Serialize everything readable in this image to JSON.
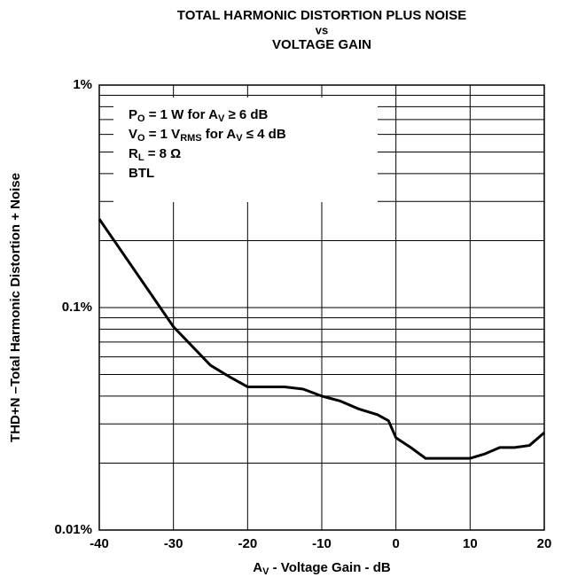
{
  "chart_data": {
    "type": "line",
    "title": [
      "TOTAL HARMONIC DISTORTION PLUS NOISE",
      "vs",
      "VOLTAGE GAIN"
    ],
    "xlabel": [
      "A",
      "V",
      " - Voltage Gain - dB"
    ],
    "ylabel": "THD+N –Total Harmonic Distortion + Noise",
    "annotation": [
      [
        "P",
        "O",
        " = 1 W for A",
        "V",
        " ≥ 6 dB"
      ],
      [
        "V",
        "O",
        " = 1 V",
        "RMS",
        " for A",
        "V",
        " ≤ 4 dB"
      ],
      [
        "R",
        "L",
        " = 8 Ω"
      ],
      [
        "BTL"
      ]
    ],
    "x": [
      -40,
      -30,
      -25,
      -22.5,
      -20,
      -15,
      -12.5,
      -10,
      -7.5,
      -5,
      -2.5,
      -1,
      0,
      2,
      4,
      10,
      12,
      14,
      16,
      18,
      20
    ],
    "series": [
      {
        "color": "#000000",
        "values": [
          0.25,
          0.082,
          0.055,
          0.049,
          0.044,
          0.044,
          0.043,
          0.04,
          0.038,
          0.035,
          0.033,
          0.031,
          0.026,
          0.0235,
          0.021,
          0.021,
          0.022,
          0.0235,
          0.0235,
          0.024,
          0.0274
        ]
      }
    ],
    "xlim": [
      -40,
      20
    ],
    "xticks": [
      -40,
      -30,
      -20,
      -10,
      0,
      10,
      20
    ],
    "ylim": [
      0.01,
      1
    ],
    "yticks": [
      {
        "value": 0.01,
        "label": "0.01%"
      },
      {
        "value": 0.1,
        "label": "0.1%"
      },
      {
        "value": 1,
        "label": "1%"
      }
    ],
    "minor_yticks": [
      0.02,
      0.03,
      0.04,
      0.05,
      0.06,
      0.07,
      0.08,
      0.09,
      0.2,
      0.3,
      0.4,
      0.5,
      0.6,
      0.7,
      0.8,
      0.9
    ],
    "log_y": true,
    "grid": true
  }
}
